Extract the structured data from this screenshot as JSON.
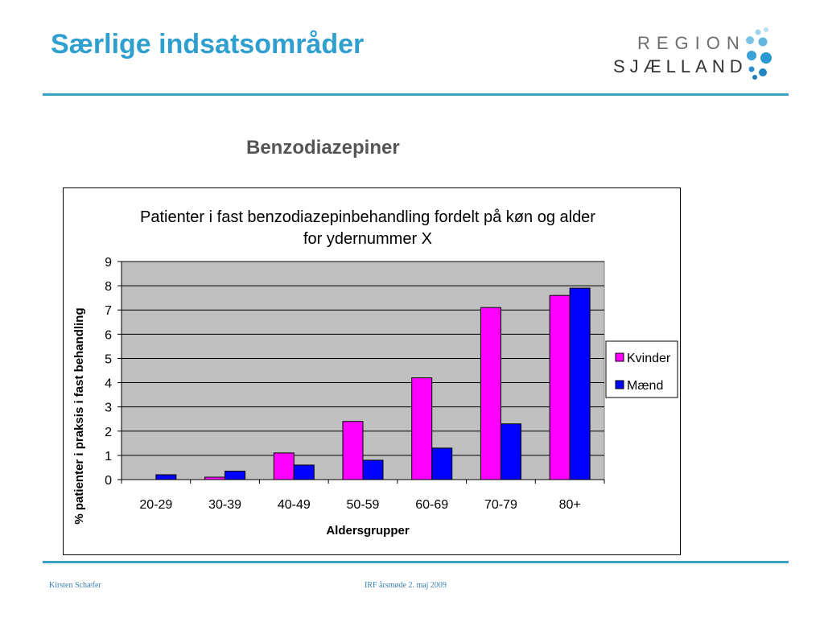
{
  "slide": {
    "title": "Særlige indsatsområder",
    "subtitle": "Benzodiazepiner",
    "logo_line1": "REGION",
    "logo_line2": "SJÆLLAND",
    "footer_left": "Kirsten Schæfer",
    "footer_center": "IRF årsmøde 2. maj 2009"
  },
  "colors": {
    "accent": "#2f9fcf",
    "plot_bg": "#c0c0c0",
    "kvinder": "#ff00ff",
    "maend": "#0000ff"
  },
  "chart_data": {
    "type": "bar",
    "title_line1": "Patienter i fast benzodiazepinbehandling fordelt på køn og alder",
    "title_line2": "for ydernummer X",
    "xlabel": "Aldersgrupper",
    "ylabel": "% patienter i praksis i fast behandling",
    "ylim": [
      0,
      9
    ],
    "yticks": [
      0,
      1,
      2,
      3,
      4,
      5,
      6,
      7,
      8,
      9
    ],
    "categories": [
      "20-29",
      "30-39",
      "40-49",
      "50-59",
      "60-69",
      "70-79",
      "80+"
    ],
    "series": [
      {
        "name": "Kvinder",
        "values": [
          0,
          0.1,
          1.1,
          2.4,
          4.2,
          7.1,
          7.6
        ]
      },
      {
        "name": "Mænd",
        "values": [
          0.2,
          0.35,
          0.6,
          0.8,
          1.3,
          2.3,
          7.9
        ]
      }
    ],
    "legend_position": "right",
    "grid": true
  }
}
